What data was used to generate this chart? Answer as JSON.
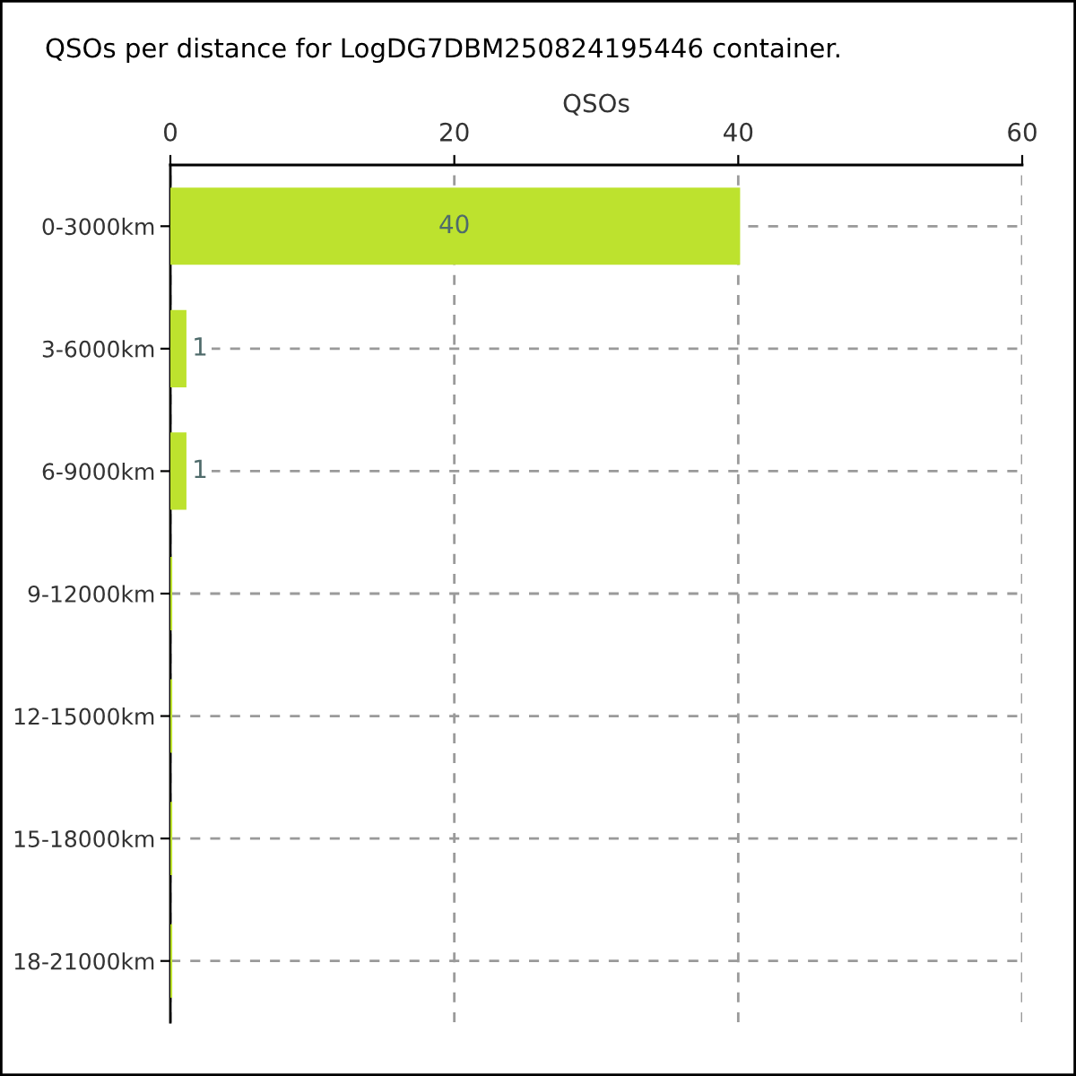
{
  "chart_data": {
    "type": "bar",
    "orientation": "horizontal",
    "title": "QSOs per distance for LogDG7DBM250824195446 container.",
    "xlabel": "QSOs",
    "categories": [
      "0-3000km",
      "3-6000km",
      "6-9000km",
      "9-12000km",
      "12-15000km",
      "15-18000km",
      "18-21000km"
    ],
    "values": [
      40,
      1,
      1,
      0,
      0,
      0,
      0
    ],
    "color": "#bde22e",
    "value_labels": [
      "40",
      "1",
      "1",
      null,
      null,
      null,
      null
    ],
    "xlim": [
      0,
      60
    ],
    "xticks": [
      0,
      20,
      40,
      60
    ],
    "grid": true
  }
}
